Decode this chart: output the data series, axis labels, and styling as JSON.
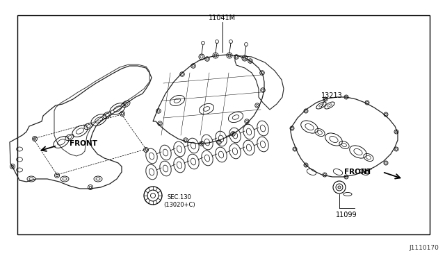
{
  "bg_color": "#ffffff",
  "border_color": "#000000",
  "labels": {
    "part1": "11041M",
    "part2": "13213",
    "part3": "11099",
    "part4": "SEC.130\n(13020+C)",
    "front_left": "FRONT",
    "front_right": "FRONT",
    "diagram_id": "J1110170"
  },
  "figsize": [
    6.4,
    3.72
  ],
  "dpi": 100,
  "border_ltrb": [
    25,
    22,
    618,
    338
  ]
}
